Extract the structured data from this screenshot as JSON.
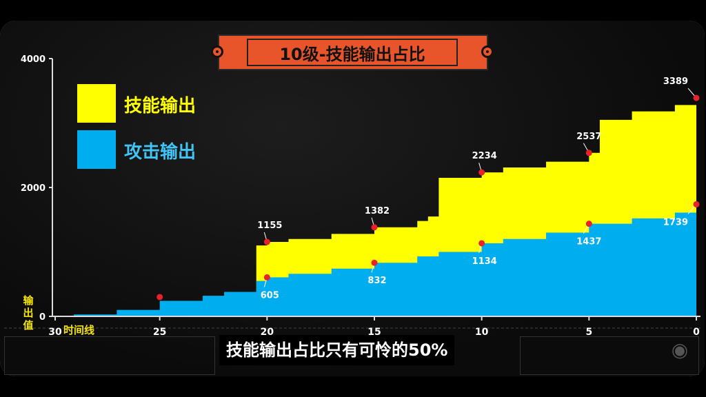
{
  "title": "10级-技能输出占比",
  "legend": [
    {
      "label": "技能输出",
      "color": "#ffff00",
      "text_color": "#ffff00"
    },
    {
      "label": "攻击输出",
      "color": "#00aeef",
      "text_color": "#3fc4f5"
    }
  ],
  "subtitle": "技能输出占比只有可怜的50%",
  "axis": {
    "y_name": [
      "输",
      "出",
      "值"
    ],
    "x_name": "时间线",
    "x_ticks": [
      "30",
      "25",
      "20",
      "15",
      "10",
      "5",
      "0"
    ],
    "y_ticks": [
      "0",
      "2000",
      "4000"
    ]
  },
  "colors": {
    "accent": "#e8552b",
    "skill": "#ffff00",
    "attack": "#00aeef",
    "marker": "#e8212a"
  },
  "chart_data": {
    "type": "area",
    "xlim": [
      30,
      0
    ],
    "ylim": [
      0,
      4000
    ],
    "series": [
      {
        "name": "攻击输出",
        "x": [
          29,
          27,
          25,
          23,
          22,
          20.5,
          20,
          19,
          17,
          15,
          13,
          12,
          10,
          9,
          7,
          5,
          3,
          1,
          0
        ],
        "values": [
          30,
          100,
          240,
          320,
          380,
          550,
          605,
          660,
          740,
          832,
          930,
          1000,
          1134,
          1200,
          1300,
          1437,
          1520,
          1610,
          1739
        ]
      },
      {
        "name": "技能输出",
        "x": [
          20.5,
          20,
          19,
          17,
          15,
          13,
          12.5,
          12,
          10,
          9,
          7,
          5,
          4.5,
          3,
          1,
          0
        ],
        "values": [
          1100,
          1155,
          1200,
          1280,
          1382,
          1480,
          1550,
          2150,
          2234,
          2310,
          2400,
          2537,
          3050,
          3180,
          3280,
          3389
        ]
      }
    ],
    "annotations": [
      {
        "x": 20,
        "y": 1155,
        "label": "1155"
      },
      {
        "x": 15,
        "y": 1382,
        "label": "1382"
      },
      {
        "x": 10,
        "y": 2234,
        "label": "2234"
      },
      {
        "x": 5,
        "y": 2537,
        "label": "2537"
      },
      {
        "x": 0,
        "y": 3389,
        "label": "3389"
      },
      {
        "x": 20,
        "y": 605,
        "label": "605"
      },
      {
        "x": 15,
        "y": 832,
        "label": "832"
      },
      {
        "x": 10,
        "y": 1134,
        "label": "1134"
      },
      {
        "x": 5,
        "y": 1437,
        "label": "1437"
      },
      {
        "x": 0,
        "y": 1739,
        "label": "1739"
      },
      {
        "x": 25,
        "y": 300,
        "label": ""
      }
    ]
  }
}
